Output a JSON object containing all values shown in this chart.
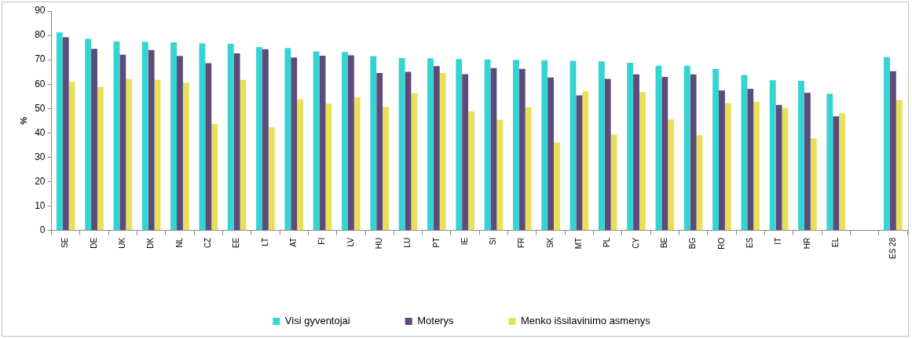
{
  "chart_data": {
    "type": "bar",
    "ylabel": "%",
    "categories": [
      "SE",
      "DE",
      "UK",
      "DK",
      "NL",
      "CZ",
      "EE",
      "LT",
      "AT",
      "FI",
      "LV",
      "HU",
      "LU",
      "PT",
      "IE",
      "SI",
      "FR",
      "SK",
      "MT",
      "PL",
      "CY",
      "BE",
      "BG",
      "RO",
      "ES",
      "IT",
      "HR",
      "EL",
      null,
      "ES 28"
    ],
    "series": [
      {
        "name": "Visi gyventojai",
        "color": "#36d3d3",
        "values": [
          81.2,
          78.6,
          77.5,
          77.4,
          77.1,
          76.7,
          76.6,
          75.2,
          74.8,
          73.4,
          73.2,
          71.5,
          70.7,
          70.6,
          70.3,
          70.1,
          70.0,
          69.8,
          69.6,
          69.3,
          68.8,
          67.6,
          67.6,
          66.2,
          63.8,
          61.6,
          61.4,
          56.1,
          null,
          71.1
        ]
      },
      {
        "name": "Moterys",
        "color": "#5e4a7b",
        "values": [
          79.2,
          74.5,
          72.1,
          74.0,
          71.6,
          68.6,
          72.6,
          74.3,
          70.9,
          71.7,
          71.8,
          64.6,
          65.1,
          67.4,
          64.1,
          66.6,
          66.3,
          62.7,
          55.4,
          62.2,
          64.0,
          63.0,
          64.0,
          57.4,
          58.1,
          51.5,
          56.5,
          46.8,
          null,
          65.3
        ]
      },
      {
        "name": "Menko išsilavinimo asmenys",
        "color": "#e8e05a",
        "values": [
          61.0,
          58.9,
          62.1,
          61.8,
          60.6,
          43.6,
          61.8,
          42.3,
          53.8,
          52.0,
          54.7,
          50.7,
          56.3,
          64.6,
          48.9,
          45.4,
          50.5,
          36.0,
          57.0,
          39.4,
          56.8,
          45.5,
          39.1,
          52.2,
          52.8,
          50.2,
          37.8,
          48.1,
          null,
          53.5
        ]
      }
    ],
    "ylim": [
      0,
      90
    ],
    "yticks": [
      0,
      10,
      20,
      30,
      40,
      50,
      60,
      70,
      80,
      90
    ],
    "grid": false,
    "legend": "bottom"
  }
}
